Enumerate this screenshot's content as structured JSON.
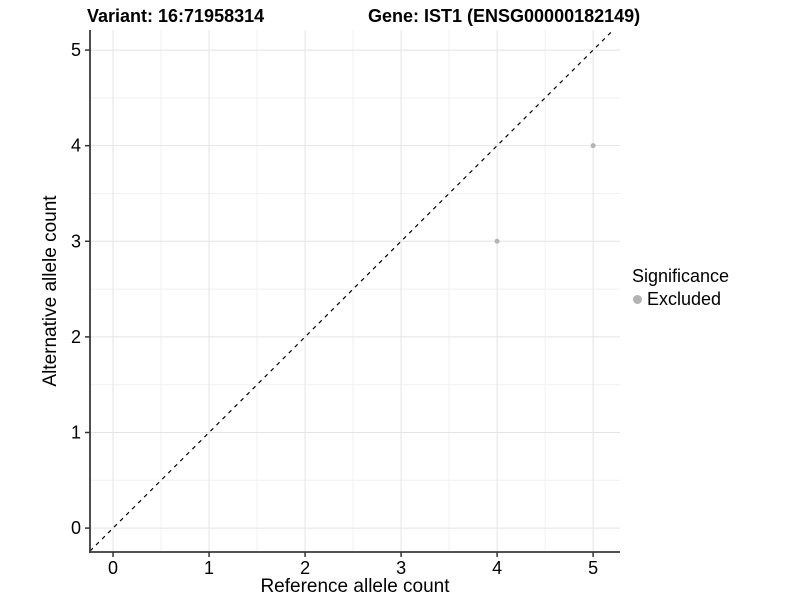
{
  "chart_data": {
    "type": "scatter",
    "title_left": "Variant: 16:71958314",
    "title_right": "Gene: IST1 (ENSG00000182149)",
    "xlabel": "Reference allele count",
    "ylabel": "Alternative allele count",
    "xlim": [
      -0.24,
      5.28
    ],
    "ylim": [
      -0.25,
      5.21
    ],
    "x_ticks": [
      0,
      1,
      2,
      3,
      4,
      5
    ],
    "y_ticks": [
      0,
      1,
      2,
      3,
      4,
      5
    ],
    "minor_grid_step": 0.5,
    "grid": true,
    "legend": {
      "title": "Significance",
      "position": "right",
      "items": [
        {
          "label": "Excluded",
          "color": "#b3b3b3"
        }
      ]
    },
    "series": [
      {
        "name": "Excluded",
        "color": "#b3b3b3",
        "points": [
          {
            "x": 4,
            "y": 3
          },
          {
            "x": 5,
            "y": 4
          }
        ]
      }
    ],
    "reference_line": {
      "type": "identity",
      "slope": 1,
      "intercept": 0,
      "style": "dashed",
      "color": "#000000"
    },
    "colors": {
      "background": "#ffffff",
      "grid_major": "#e4e4e4",
      "grid_minor": "#f1f1f1",
      "axis_line": "#3a3a3a",
      "tick_mark": "#333333",
      "text": "#000000",
      "point": "#b3b3b3"
    }
  }
}
